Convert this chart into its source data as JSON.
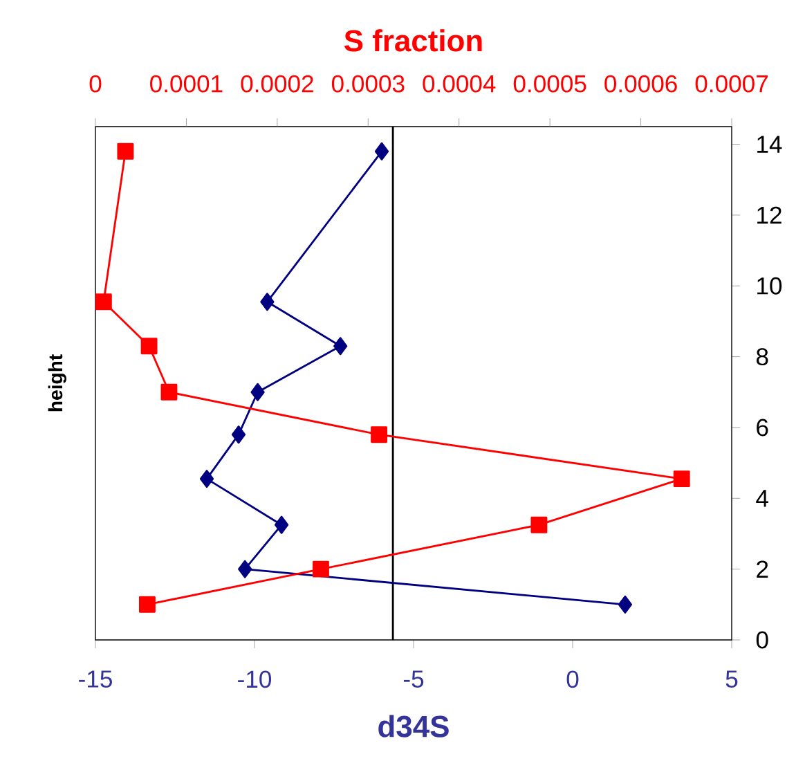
{
  "chart_data": {
    "type": "line",
    "x2label": "S fraction",
    "xlabel": "d34S",
    "ylabel": "height",
    "xlim": [
      -15,
      5
    ],
    "xticks": [
      -15,
      -10,
      -5,
      0,
      5
    ],
    "x2lim": [
      0,
      0.0007
    ],
    "x2ticks": [
      0,
      0.0001,
      0.0002,
      0.0003,
      0.0004,
      0.0005,
      0.0006,
      0.0007
    ],
    "ylim": [
      0,
      14.5
    ],
    "yticks": [
      0,
      2,
      4,
      6,
      8,
      10,
      12,
      14
    ],
    "ref_lines": [
      {
        "axis": "x",
        "value": -5.65,
        "color": "#000000"
      }
    ],
    "series": [
      {
        "color": "#000080",
        "marker": "diamond",
        "x": [
          -6.0,
          -9.6,
          -7.3,
          -9.9,
          -10.5,
          -11.5,
          -9.15,
          -10.3,
          1.65
        ],
        "values": [
          13.8,
          9.55,
          8.3,
          7.0,
          5.8,
          4.55,
          3.25,
          2.0,
          1.0
        ]
      },
      {
        "color": "#ff0000",
        "marker": "square",
        "axis": "x2",
        "x": [
          3.3e-05,
          9e-06,
          5.9e-05,
          8.1e-05,
          0.000312,
          0.000645,
          0.000488,
          0.000248,
          5.7e-05
        ],
        "values": [
          13.8,
          9.55,
          8.3,
          7.0,
          5.8,
          4.55,
          3.25,
          2.0,
          1.0
        ]
      }
    ]
  }
}
